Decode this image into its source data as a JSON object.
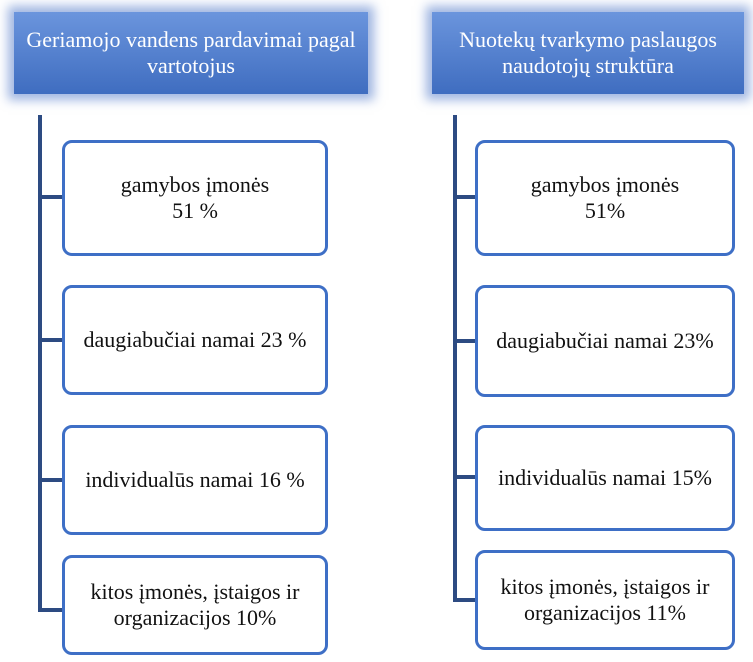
{
  "columns": [
    {
      "title": "Geriamojo vandens pardavimai pagal vartotojus",
      "items": [
        "gamybos įmonės 51 %",
        "daugiabučiai namai 23 %",
        "individualūs namai 16 %",
        "kitos įmonės, įstaigos ir organizacijos 10%"
      ]
    },
    {
      "title": "Nuotekų tvarkymo paslaugos naudotojų struktūra",
      "items": [
        "gamybos įmonės 51%",
        "daugiabučiai namai 23%",
        "individualūs namai 15%",
        "kitos įmonės, įstaigos ir organizacijos 11%"
      ]
    }
  ]
}
